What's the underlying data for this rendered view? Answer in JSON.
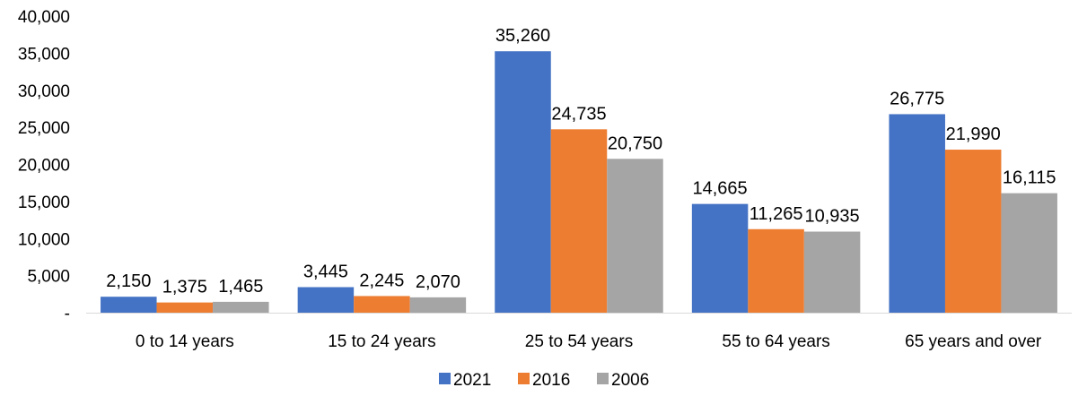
{
  "chart_data": {
    "type": "bar",
    "categories": [
      "0 to 14 years",
      "15 to 24 years",
      "25 to 54 years",
      "55 to 64 years",
      "65 years and over"
    ],
    "series": [
      {
        "name": "2021",
        "color": "#4472C4",
        "values": [
          2150,
          3445,
          35260,
          14665,
          26775
        ]
      },
      {
        "name": "2016",
        "color": "#ED7D31",
        "values": [
          1375,
          2245,
          24735,
          11265,
          21990
        ]
      },
      {
        "name": "2006",
        "color": "#A5A5A5",
        "values": [
          1465,
          2070,
          20750,
          10935,
          16115
        ]
      }
    ],
    "data_labels": [
      [
        "2,150",
        "3,445",
        "35,260",
        "14,665",
        "26,775"
      ],
      [
        "1,375",
        "2,245",
        "24,735",
        "11,265",
        "21,990"
      ],
      [
        "1,465",
        "2,070",
        "20,750",
        "10,935",
        "16,115"
      ]
    ],
    "ylim": [
      0,
      40000
    ],
    "y_ticks": [
      0,
      5000,
      10000,
      15000,
      20000,
      25000,
      30000,
      35000,
      40000
    ],
    "y_tick_labels": [
      "-",
      "5,000",
      "10,000",
      "15,000",
      "20,000",
      "25,000",
      "30,000",
      "35,000",
      "40,000"
    ],
    "grid": false,
    "legend_position": "bottom",
    "title": "",
    "xlabel": "",
    "ylabel": ""
  }
}
